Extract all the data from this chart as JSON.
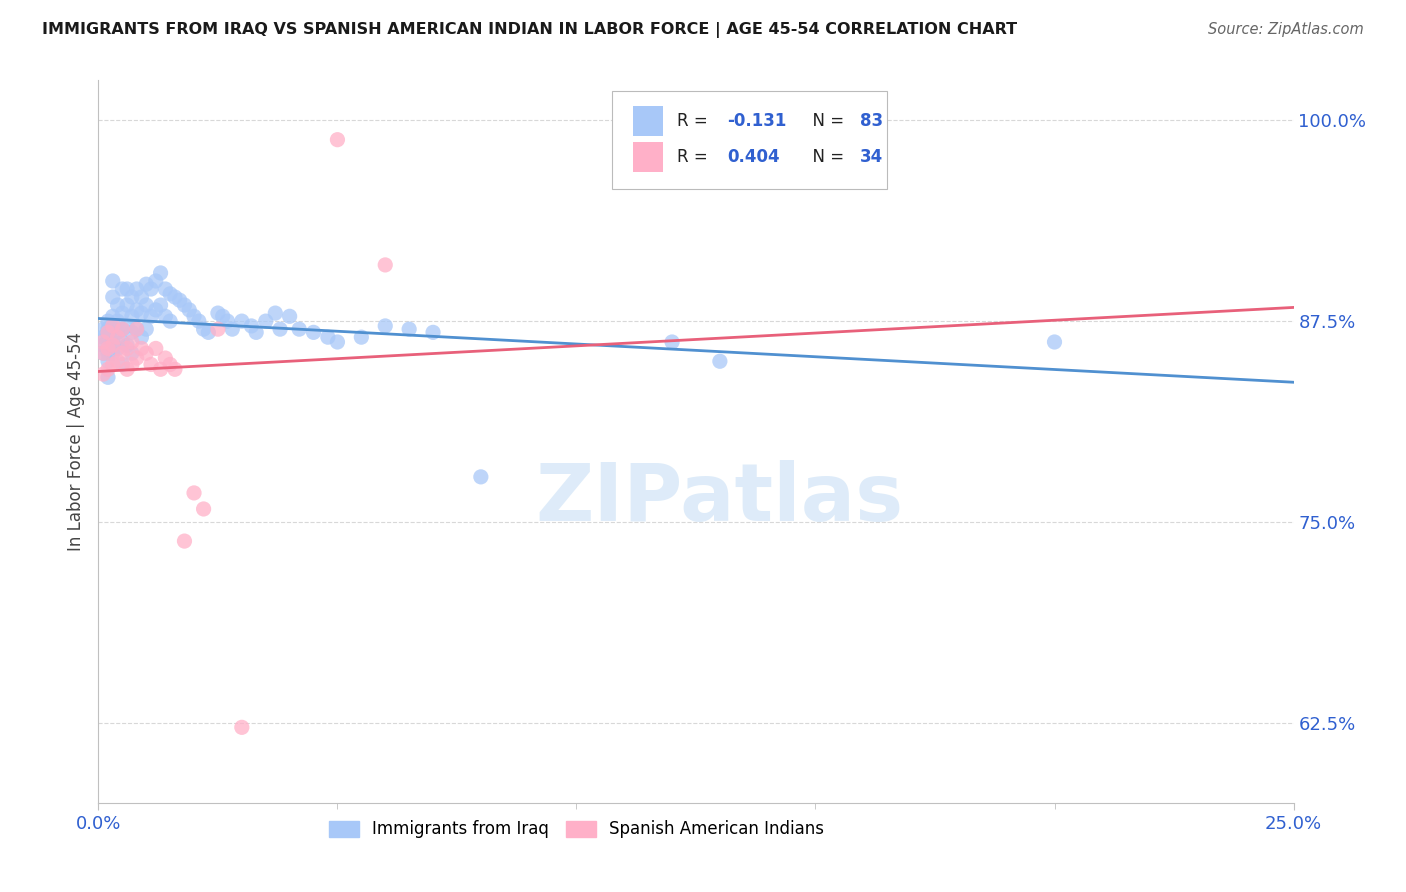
{
  "title": "IMMIGRANTS FROM IRAQ VS SPANISH AMERICAN INDIAN IN LABOR FORCE | AGE 45-54 CORRELATION CHART",
  "source": "Source: ZipAtlas.com",
  "ylabel": "In Labor Force | Age 45-54",
  "xmin": 0.0,
  "xmax": 0.25,
  "ymin": 0.575,
  "ymax": 1.025,
  "yticks": [
    0.625,
    0.75,
    0.875,
    1.0
  ],
  "ytick_labels": [
    "62.5%",
    "75.0%",
    "87.5%",
    "100.0%"
  ],
  "xtick_left": "0.0%",
  "xtick_right": "25.0%",
  "watermark": "ZIPatlas",
  "color_iraq": "#a8c8f8",
  "color_pink": "#ffb0c8",
  "color_iraq_line": "#5090d0",
  "color_pink_line": "#e8607a",
  "color_blue_text": "#3060d0",
  "color_axis": "#c0c0c0",
  "color_grid": "#d8d8d8",
  "iraq_x": [
    0.001,
    0.001,
    0.001,
    0.001,
    0.002,
    0.002,
    0.002,
    0.002,
    0.002,
    0.002,
    0.003,
    0.003,
    0.003,
    0.003,
    0.003,
    0.003,
    0.004,
    0.004,
    0.004,
    0.004,
    0.005,
    0.005,
    0.005,
    0.005,
    0.005,
    0.006,
    0.006,
    0.006,
    0.006,
    0.007,
    0.007,
    0.007,
    0.007,
    0.008,
    0.008,
    0.008,
    0.009,
    0.009,
    0.009,
    0.01,
    0.01,
    0.01,
    0.011,
    0.011,
    0.012,
    0.012,
    0.013,
    0.013,
    0.014,
    0.014,
    0.015,
    0.015,
    0.016,
    0.017,
    0.018,
    0.019,
    0.02,
    0.021,
    0.022,
    0.023,
    0.025,
    0.026,
    0.027,
    0.028,
    0.03,
    0.032,
    0.033,
    0.035,
    0.037,
    0.038,
    0.04,
    0.042,
    0.045,
    0.048,
    0.05,
    0.055,
    0.06,
    0.065,
    0.07,
    0.08,
    0.12,
    0.13,
    0.2
  ],
  "iraq_y": [
    0.87,
    0.865,
    0.86,
    0.855,
    0.875,
    0.87,
    0.865,
    0.855,
    0.85,
    0.84,
    0.9,
    0.89,
    0.878,
    0.87,
    0.862,
    0.855,
    0.885,
    0.875,
    0.868,
    0.858,
    0.895,
    0.88,
    0.87,
    0.862,
    0.848,
    0.895,
    0.885,
    0.872,
    0.86,
    0.89,
    0.878,
    0.868,
    0.855,
    0.895,
    0.882,
    0.87,
    0.89,
    0.88,
    0.865,
    0.898,
    0.885,
    0.87,
    0.895,
    0.878,
    0.9,
    0.882,
    0.905,
    0.885,
    0.895,
    0.878,
    0.892,
    0.875,
    0.89,
    0.888,
    0.885,
    0.882,
    0.878,
    0.875,
    0.87,
    0.868,
    0.88,
    0.878,
    0.875,
    0.87,
    0.875,
    0.872,
    0.868,
    0.875,
    0.88,
    0.87,
    0.878,
    0.87,
    0.868,
    0.865,
    0.862,
    0.865,
    0.872,
    0.87,
    0.868,
    0.778,
    0.862,
    0.85,
    0.862
  ],
  "pink_x": [
    0.001,
    0.001,
    0.001,
    0.002,
    0.002,
    0.002,
    0.003,
    0.003,
    0.003,
    0.004,
    0.004,
    0.005,
    0.005,
    0.006,
    0.006,
    0.007,
    0.007,
    0.008,
    0.008,
    0.009,
    0.01,
    0.011,
    0.012,
    0.013,
    0.014,
    0.015,
    0.016,
    0.018,
    0.02,
    0.022,
    0.025,
    0.03,
    0.05,
    0.06
  ],
  "pink_y": [
    0.862,
    0.855,
    0.842,
    0.868,
    0.858,
    0.845,
    0.872,
    0.86,
    0.848,
    0.865,
    0.85,
    0.87,
    0.855,
    0.858,
    0.845,
    0.862,
    0.848,
    0.87,
    0.852,
    0.858,
    0.855,
    0.848,
    0.858,
    0.845,
    0.852,
    0.848,
    0.845,
    0.738,
    0.768,
    0.758,
    0.87,
    0.622,
    0.988,
    0.91
  ]
}
